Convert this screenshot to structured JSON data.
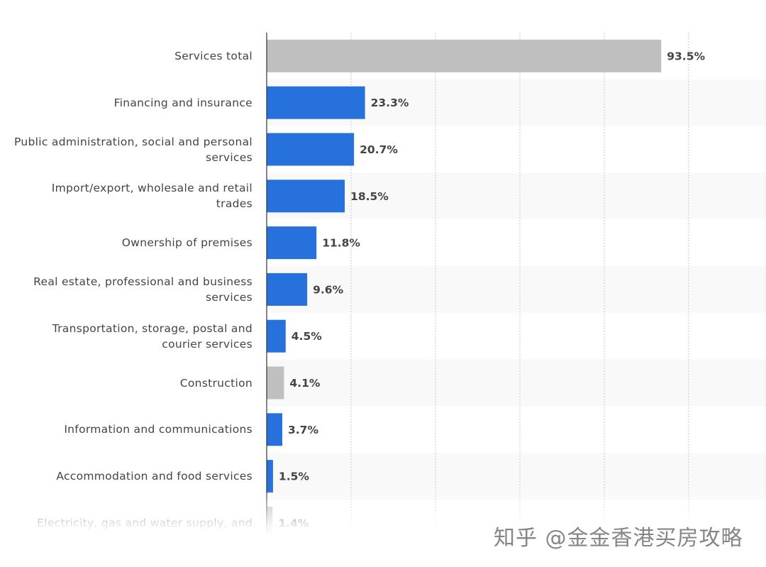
{
  "chart_data": {
    "type": "bar",
    "orientation": "horizontal",
    "categories": [
      "Services total",
      "Financing and insurance",
      "Public administration, social and personal services",
      "Import/export, wholesale and retail trades",
      "Ownership of premises",
      "Real estate, professional and business services",
      "Transportation, storage, postal and courier services",
      "Construction",
      "Information and communications",
      "Accommodation and food services",
      "Electricity, gas and water supply, and"
    ],
    "values": [
      93.5,
      23.3,
      20.7,
      18.5,
      11.8,
      9.6,
      4.5,
      4.1,
      3.7,
      1.5,
      1.4
    ],
    "value_labels": [
      "93.5%",
      "23.3%",
      "20.7%",
      "18.5%",
      "11.8%",
      "9.6%",
      "4.5%",
      "4.1%",
      "3.7%",
      "1.5%",
      "1.4%"
    ],
    "colors": [
      "#bfbfbf",
      "#2771dd",
      "#2771dd",
      "#2771dd",
      "#2771dd",
      "#2771dd",
      "#2771dd",
      "#bfbfbf",
      "#2771dd",
      "#2771dd",
      "#bfbfbf"
    ],
    "xlim": [
      0,
      118
    ],
    "xticks": [
      20,
      40,
      60,
      80,
      100
    ],
    "grid": true
  },
  "watermark": "知乎 @金金香港买房攻略"
}
